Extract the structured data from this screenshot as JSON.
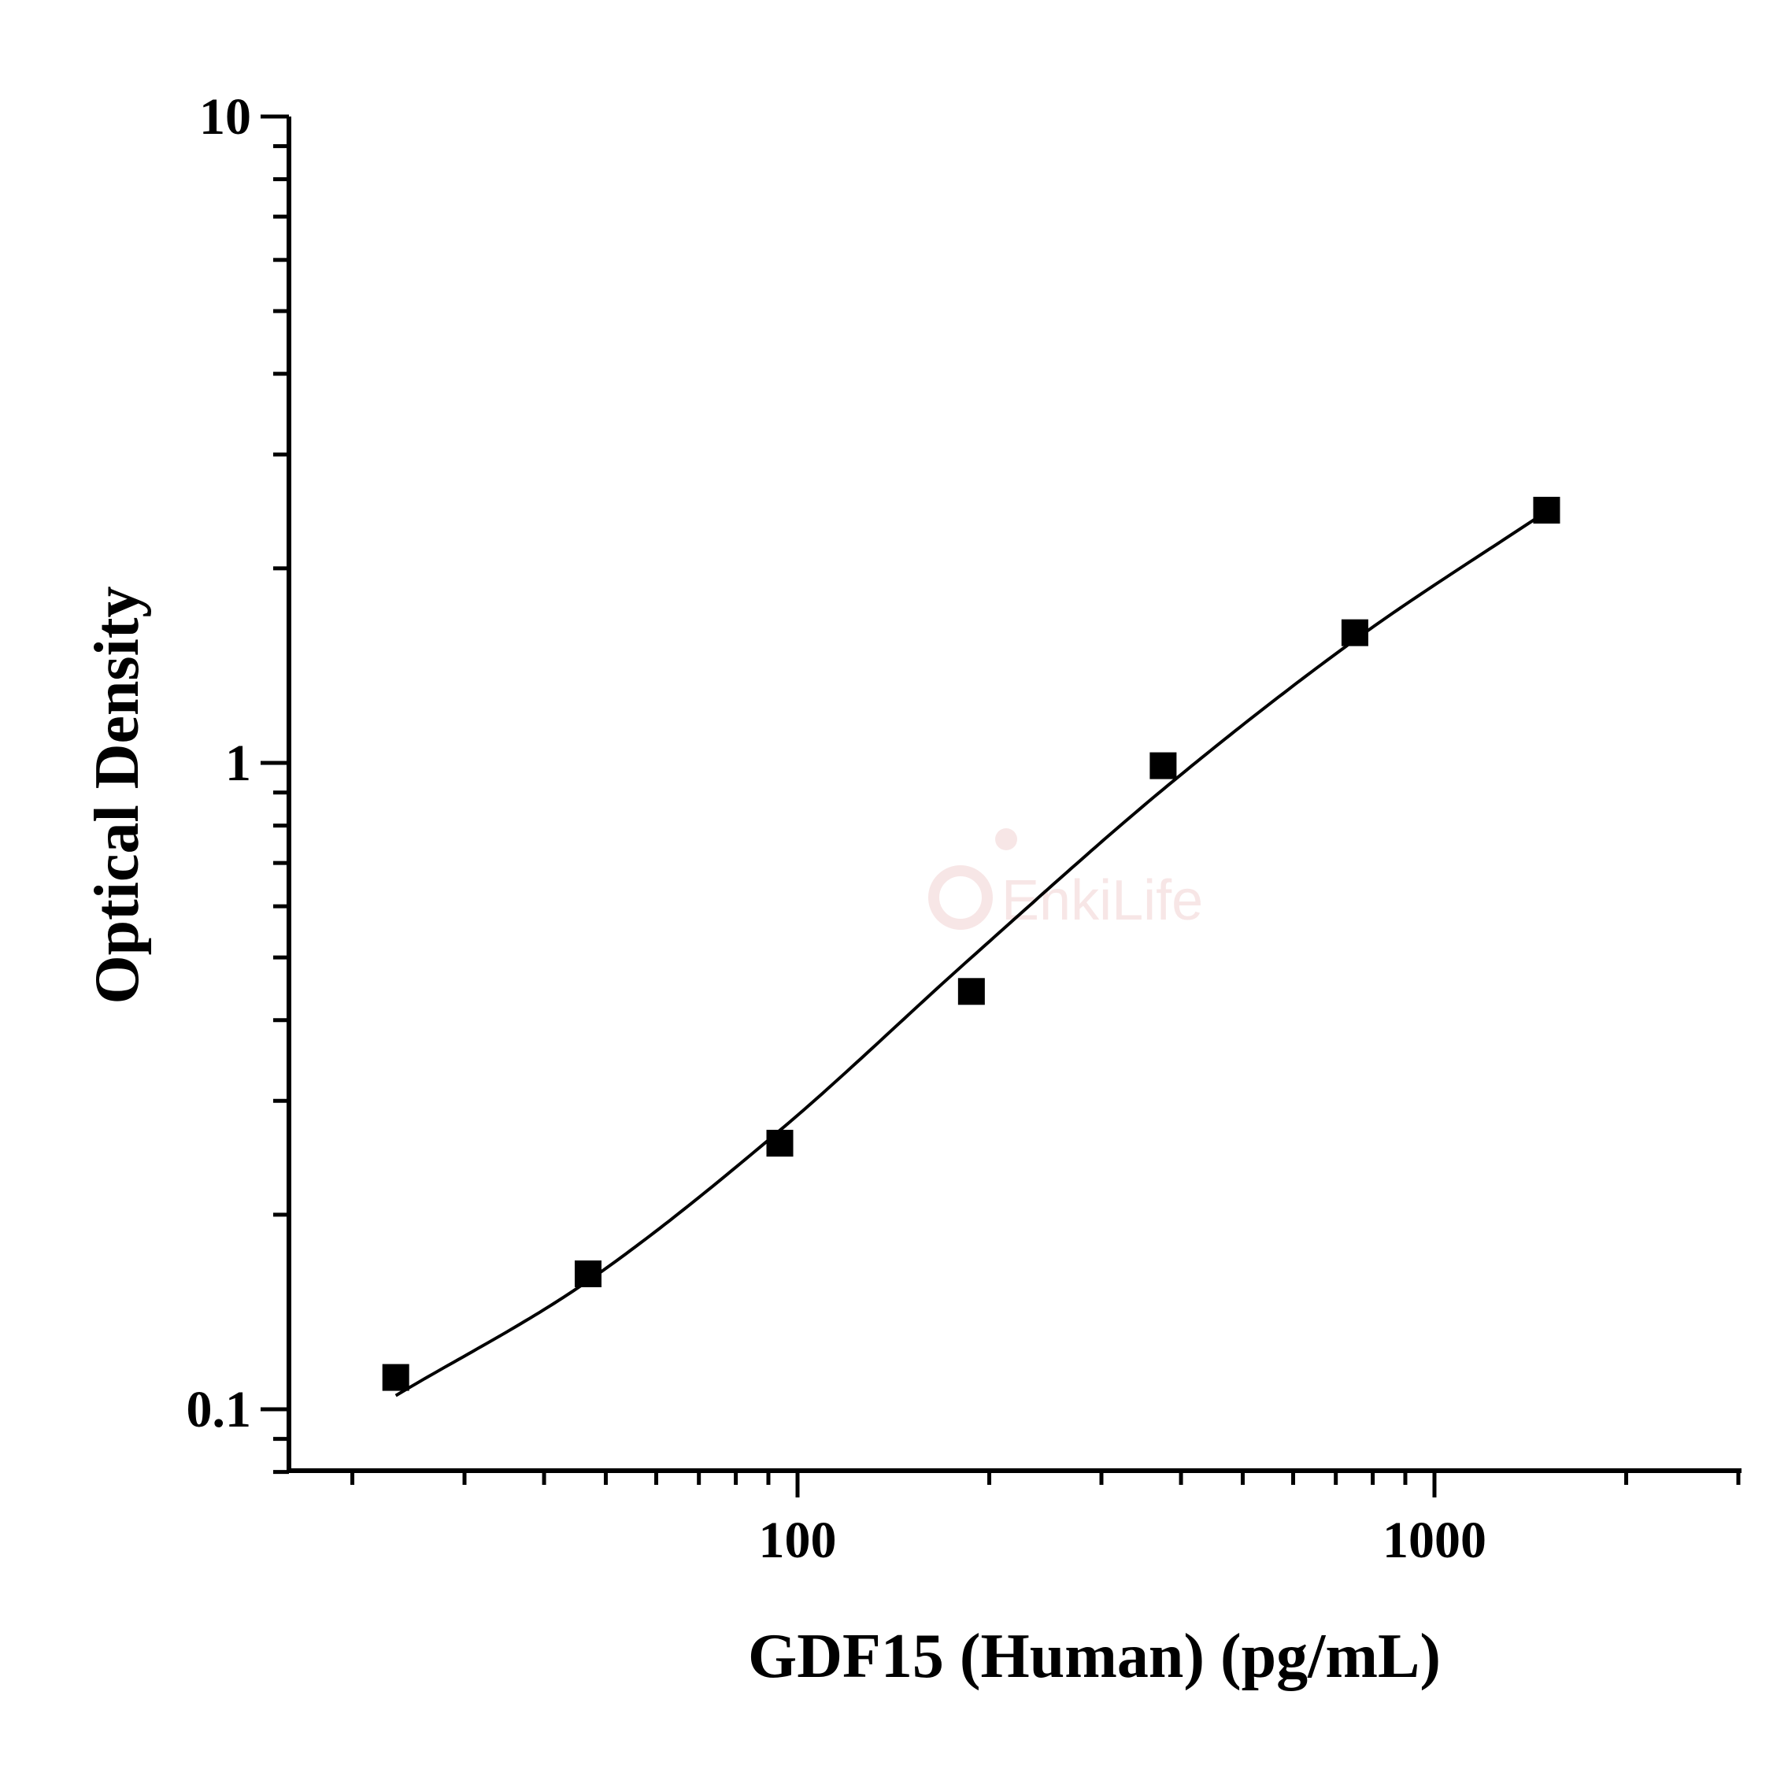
{
  "chart_data": {
    "type": "scatter",
    "xlabel": "GDF15 (Human) (pg/mL)",
    "ylabel": "Optical Density",
    "x_scale": "log",
    "y_scale": "log",
    "xlim": [
      10,
      3700
    ],
    "ylim": [
      0.08,
      10
    ],
    "x_ticks": [
      100,
      1000
    ],
    "x_tick_labels": [
      "100",
      "1000"
    ],
    "y_ticks": [
      0.1,
      1,
      10
    ],
    "y_tick_labels": [
      "0.1",
      "1",
      "10"
    ],
    "grid": false,
    "legend": "none",
    "series": [
      {
        "marker": "square",
        "color": "#000000",
        "x": [
          23.4,
          46.9,
          93.8,
          187.5,
          375,
          750,
          1500
        ],
        "y": [
          0.112,
          0.162,
          0.258,
          0.443,
          0.99,
          1.59,
          2.46
        ]
      }
    ],
    "fit_curve": {
      "type": "4PL",
      "color": "#000000",
      "x": [
        23.4,
        46.9,
        93.8,
        187.5,
        375,
        750,
        1500
      ],
      "y": [
        0.105,
        0.158,
        0.27,
        0.5,
        0.91,
        1.55,
        2.45
      ]
    }
  },
  "watermark": {
    "text": "EnkiLife",
    "color": "#f3d6d6"
  }
}
